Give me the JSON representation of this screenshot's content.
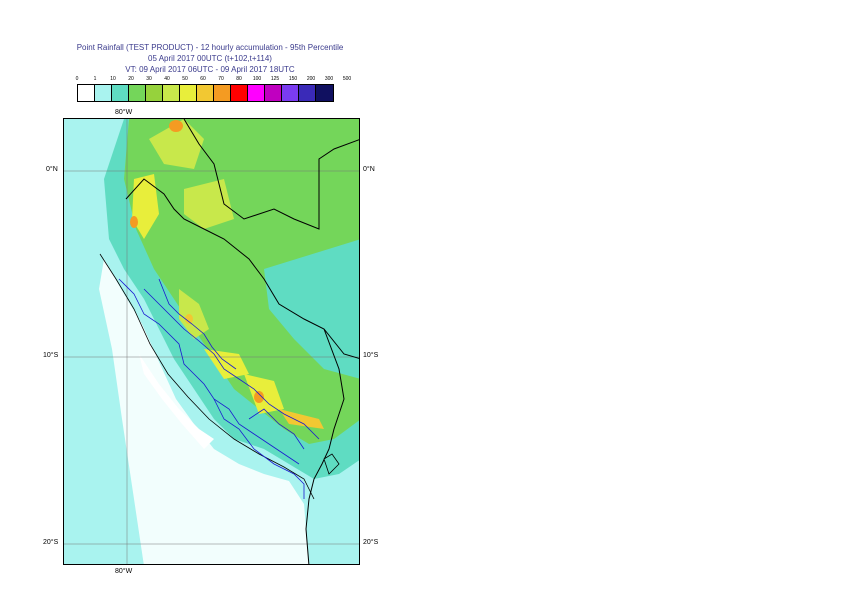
{
  "title": {
    "line1": "Point Rainfall (TEST PRODUCT) - 12 hourly accumulation - 95th Percentile",
    "line2": "05 April 2017 00UTC (t+102,t+114)",
    "line3": "VT: 09 April 2017 06UTC - 09 April 2017 18UTC"
  },
  "legend": {
    "labels": [
      "0",
      "1",
      "10",
      "20",
      "30",
      "40",
      "50",
      "60",
      "70",
      "80",
      "100",
      "125",
      "150",
      "200",
      "300",
      "500"
    ],
    "colors": [
      "#ffffff",
      "#a9f3ef",
      "#5fdcc2",
      "#74d65a",
      "#96d23c",
      "#c8e84b",
      "#e8ee3b",
      "#f2c832",
      "#f49b22",
      "#ff0000",
      "#ff00ff",
      "#c000c0",
      "#7a3cf0",
      "#3a2ab8",
      "#101060"
    ]
  },
  "map": {
    "lon_label_top": "80°W",
    "lon_label_bottom": "80°W",
    "lat_labels_left": [
      "0°N",
      "10°S",
      "20°S"
    ],
    "lat_labels_right": [
      "0°N",
      "10°S",
      "20°S"
    ],
    "country_border_color": "#000000",
    "region_border_color": "#1a1ad0"
  }
}
